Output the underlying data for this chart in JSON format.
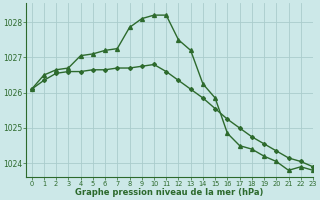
{
  "line1_x": [
    0,
    1,
    2,
    3,
    4,
    5,
    6,
    7,
    8,
    9,
    10,
    11,
    12,
    13,
    14,
    15,
    16,
    17,
    18,
    19,
    20,
    21,
    22,
    23
  ],
  "line1_y": [
    1026.1,
    1026.5,
    1026.65,
    1026.7,
    1027.05,
    1027.1,
    1027.2,
    1027.25,
    1027.85,
    1028.1,
    1028.2,
    1028.2,
    1027.5,
    1027.2,
    1026.25,
    1025.85,
    1024.85,
    1024.5,
    1024.4,
    1024.2,
    1024.05,
    1023.8,
    1023.9,
    1023.8
  ],
  "line2_x": [
    0,
    1,
    2,
    3,
    4,
    5,
    6,
    7,
    8,
    9,
    10,
    11,
    12,
    13,
    14,
    15,
    16,
    17,
    18,
    19,
    20,
    21,
    22,
    23
  ],
  "line2_y": [
    1026.1,
    1026.35,
    1026.55,
    1026.6,
    1026.6,
    1026.65,
    1026.65,
    1026.7,
    1026.7,
    1026.75,
    1026.8,
    1026.6,
    1026.35,
    1026.1,
    1025.85,
    1025.55,
    1025.25,
    1025.0,
    1024.75,
    1024.55,
    1024.35,
    1024.15,
    1024.05,
    1023.9
  ],
  "line_color": "#2d6a2d",
  "bg_color": "#cce8e8",
  "grid_color": "#aacccc",
  "xlabel": "Graphe pression niveau de la mer (hPa)",
  "xlim": [
    -0.5,
    23
  ],
  "ylim": [
    1023.6,
    1028.55
  ],
  "yticks": [
    1024,
    1025,
    1026,
    1027,
    1028
  ],
  "xticks": [
    0,
    1,
    2,
    3,
    4,
    5,
    6,
    7,
    8,
    9,
    10,
    11,
    12,
    13,
    14,
    15,
    16,
    17,
    18,
    19,
    20,
    21,
    22,
    23
  ]
}
